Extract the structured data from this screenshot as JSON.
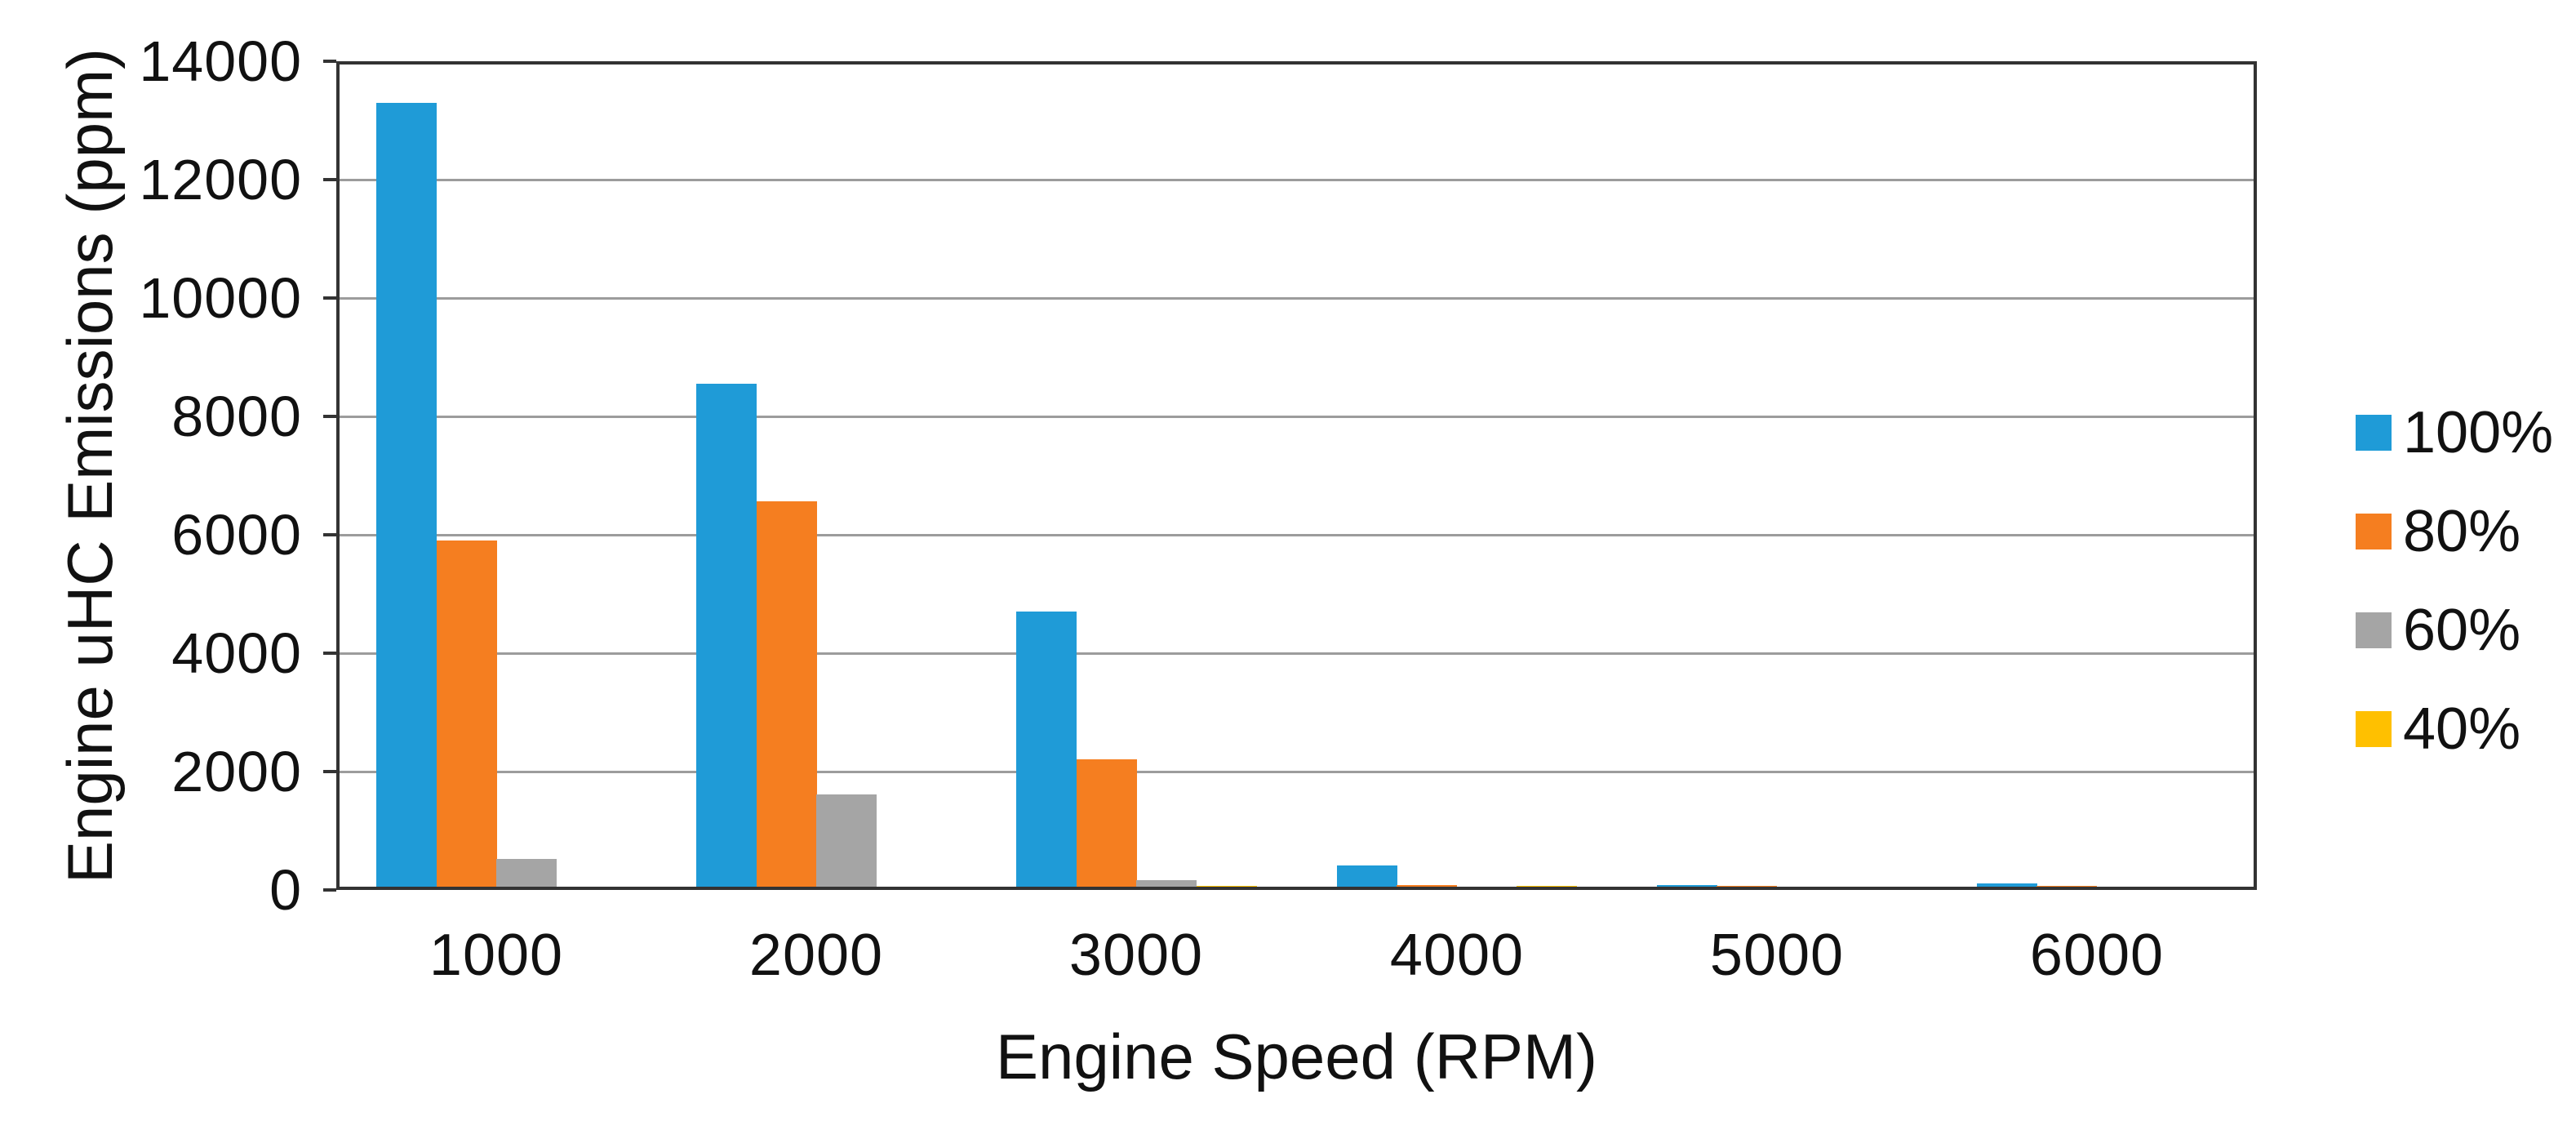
{
  "chart_data": {
    "type": "bar",
    "title": "",
    "xlabel": "Engine Speed (RPM)",
    "ylabel": "Engine uHC Emissions (ppm)",
    "categories": [
      "1000",
      "2000",
      "3000",
      "4000",
      "5000",
      "6000"
    ],
    "series": [
      {
        "name": "100%",
        "color": "#1f9bd7",
        "values": [
          13300,
          8550,
          4700,
          420,
          80,
          110
        ]
      },
      {
        "name": "80%",
        "color": "#f57e20",
        "values": [
          5900,
          6570,
          2200,
          80,
          70,
          75
        ]
      },
      {
        "name": "60%",
        "color": "#a5a5a5",
        "values": [
          520,
          1620,
          170,
          30,
          25,
          25
        ]
      },
      {
        "name": "40%",
        "color": "#ffc000",
        "values": [
          0,
          0,
          70,
          70,
          55,
          55
        ]
      }
    ],
    "ylim": [
      0,
      14000
    ],
    "ytick_step": 2000,
    "ytick_labels": [
      "0",
      "2000",
      "4000",
      "6000",
      "8000",
      "10000",
      "12000",
      "14000"
    ],
    "grid": "horizontal",
    "legend_position": "right",
    "legend_labels": [
      "100%",
      "80%",
      "60%",
      "40%"
    ]
  },
  "colors": {
    "background": "#ffffff",
    "axis": "#333333",
    "gridline": "#9c9c9c",
    "text": "#111111"
  }
}
